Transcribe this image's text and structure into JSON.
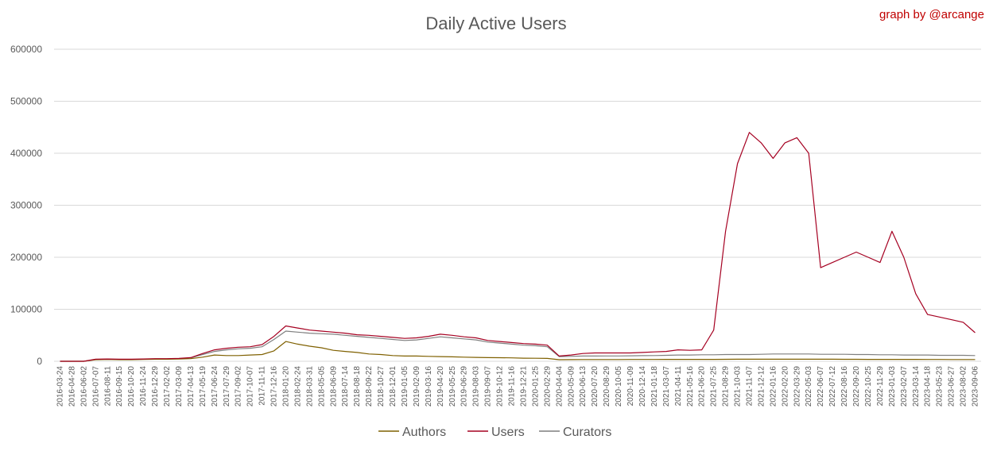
{
  "chart_data": {
    "type": "line",
    "title": "Daily Active Users",
    "credit": "graph by @arcange",
    "ylim": [
      0,
      600000
    ],
    "yticks": [
      0,
      100000,
      200000,
      300000,
      400000,
      500000,
      600000
    ],
    "grid": true,
    "legend_position": "bottom",
    "x": [
      "2016-03-24",
      "2016-04-28",
      "2016-06-02",
      "2016-07-07",
      "2016-08-11",
      "2016-09-15",
      "2016-10-20",
      "2016-11-24",
      "2016-12-29",
      "2017-02-02",
      "2017-03-09",
      "2017-04-13",
      "2017-05-19",
      "2017-06-24",
      "2017-07-29",
      "2017-09-02",
      "2017-10-07",
      "2017-11-11",
      "2017-12-16",
      "2018-01-20",
      "2018-02-24",
      "2018-03-31",
      "2018-05-05",
      "2018-06-09",
      "2018-07-14",
      "2018-08-18",
      "2018-09-22",
      "2018-10-27",
      "2018-12-01",
      "2019-01-05",
      "2019-02-09",
      "2019-03-16",
      "2019-04-20",
      "2019-05-25",
      "2019-06-29",
      "2019-08-03",
      "2019-09-07",
      "2019-10-12",
      "2019-11-16",
      "2019-12-21",
      "2020-01-25",
      "2020-02-29",
      "2020-04-04",
      "2020-05-09",
      "2020-06-13",
      "2020-07-20",
      "2020-08-29",
      "2020-10-05",
      "2020-11-09",
      "2020-12-14",
      "2021-01-18",
      "2021-03-07",
      "2021-04-11",
      "2021-05-16",
      "2021-06-20",
      "2021-07-25",
      "2021-08-29",
      "2021-10-03",
      "2021-11-07",
      "2021-12-12",
      "2022-01-16",
      "2022-02-20",
      "2022-03-29",
      "2022-05-03",
      "2022-06-07",
      "2022-07-12",
      "2022-08-16",
      "2022-09-20",
      "2022-10-25",
      "2022-11-29",
      "2023-01-03",
      "2023-02-07",
      "2023-03-14",
      "2023-04-18",
      "2023-05-23",
      "2023-06-27",
      "2023-08-02",
      "2023-09-06"
    ],
    "series": [
      {
        "name": "Authors",
        "color": "#7f6000",
        "values": [
          0,
          0,
          0,
          3000,
          3500,
          3000,
          3000,
          3500,
          4000,
          4000,
          4500,
          5000,
          8000,
          12000,
          11000,
          11000,
          12000,
          13000,
          20000,
          38000,
          33000,
          29000,
          26000,
          21000,
          19000,
          17000,
          14000,
          13000,
          11000,
          10000,
          10000,
          9500,
          9000,
          8500,
          8000,
          7500,
          7000,
          6800,
          6500,
          6000,
          5800,
          5500,
          3000,
          3200,
          3300,
          3300,
          3400,
          3400,
          3500,
          3500,
          3500,
          3600,
          3600,
          3600,
          3600,
          3700,
          3800,
          4000,
          4000,
          4000,
          4000,
          4000,
          4000,
          4000,
          3900,
          3900,
          3800,
          3800,
          3700,
          3700,
          3700,
          3600,
          3600,
          3500,
          3500,
          3400,
          3300,
          3300
        ]
      },
      {
        "name": "Users",
        "color": "#a50021",
        "values": [
          0,
          0,
          0,
          4000,
          4500,
          4000,
          4000,
          4500,
          5000,
          5000,
          5500,
          7000,
          15000,
          22000,
          25000,
          27000,
          28000,
          32000,
          48000,
          68000,
          64000,
          60000,
          58000,
          56000,
          54000,
          51000,
          50000,
          48000,
          46000,
          44000,
          45000,
          48000,
          52000,
          50000,
          47000,
          45000,
          40000,
          38000,
          36000,
          34000,
          33000,
          31000,
          10000,
          12000,
          15000,
          16000,
          16000,
          16000,
          16000,
          17000,
          18000,
          19000,
          22000,
          21000,
          22000,
          60000,
          250000,
          380000,
          440000,
          420000,
          390000,
          420000,
          430000,
          400000,
          180000,
          190000,
          200000,
          210000,
          200000,
          190000,
          250000,
          200000,
          130000,
          90000,
          85000,
          80000,
          75000,
          55000
        ]
      },
      {
        "name": "Curators",
        "color": "#7f7f7f",
        "values": [
          0,
          0,
          0,
          3500,
          4000,
          3500,
          3500,
          4000,
          4500,
          4500,
          5000,
          6500,
          13000,
          19000,
          22000,
          24000,
          25000,
          28000,
          42000,
          58000,
          56000,
          54000,
          53000,
          52000,
          50000,
          48000,
          46000,
          44000,
          42000,
          40000,
          41000,
          44000,
          47000,
          45000,
          43000,
          41000,
          37000,
          35000,
          33000,
          31000,
          30000,
          28000,
          9000,
          9500,
          10000,
          10000,
          10200,
          10300,
          10500,
          10800,
          11000,
          11500,
          12000,
          12000,
          12500,
          12500,
          13000,
          13000,
          13000,
          13500,
          14000,
          14000,
          14000,
          14000,
          13500,
          13500,
          13500,
          13000,
          13000,
          12500,
          12500,
          12000,
          12000,
          12000,
          11500,
          11500,
          11500,
          11000
        ]
      }
    ]
  }
}
